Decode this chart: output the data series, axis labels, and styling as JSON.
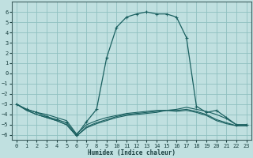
{
  "xlabel": "Humidex (Indice chaleur)",
  "background_color": "#c0e0e0",
  "grid_color": "#90c0c0",
  "line_color": "#1a6060",
  "xlim": [
    -0.5,
    23.5
  ],
  "ylim": [
    -6.5,
    7.0
  ],
  "xticks": [
    0,
    1,
    2,
    3,
    4,
    5,
    6,
    7,
    8,
    9,
    10,
    11,
    12,
    13,
    14,
    15,
    16,
    17,
    18,
    19,
    20,
    21,
    22,
    23
  ],
  "yticks": [
    -6,
    -5,
    -4,
    -3,
    -2,
    -1,
    0,
    1,
    2,
    3,
    4,
    5,
    6
  ],
  "series": [
    {
      "x": [
        0,
        1,
        2,
        3,
        4,
        5,
        6,
        7,
        8,
        9,
        10,
        11,
        12,
        13,
        14,
        15,
        16,
        17,
        18,
        19,
        20,
        21,
        22,
        23
      ],
      "y": [
        -3.0,
        -3.5,
        -3.8,
        -4.0,
        -4.3,
        -4.6,
        -5.9,
        -5.0,
        -4.6,
        -4.3,
        -4.1,
        -3.9,
        -3.8,
        -3.7,
        -3.6,
        -3.6,
        -3.5,
        -3.3,
        -3.5,
        -3.7,
        -4.0,
        -4.4,
        -5.0,
        -5.0
      ],
      "marker": false
    },
    {
      "x": [
        0,
        1,
        2,
        3,
        4,
        5,
        6,
        7,
        8,
        9,
        10,
        11,
        12,
        13,
        14,
        15,
        16,
        17,
        18,
        19,
        20,
        21,
        22,
        23
      ],
      "y": [
        -3.0,
        -3.6,
        -4.0,
        -4.3,
        -4.6,
        -5.0,
        -6.1,
        -5.2,
        -4.8,
        -4.5,
        -4.2,
        -4.0,
        -3.9,
        -3.8,
        -3.7,
        -3.6,
        -3.6,
        -3.5,
        -3.7,
        -4.0,
        -4.5,
        -4.8,
        -5.1,
        -5.1
      ],
      "marker": false
    },
    {
      "x": [
        0,
        1,
        2,
        3,
        4,
        5,
        6,
        7,
        8,
        9,
        10,
        11,
        12,
        13,
        14,
        15,
        16,
        17,
        18,
        19,
        20,
        21,
        22,
        23
      ],
      "y": [
        -3.0,
        -3.6,
        -4.0,
        -4.3,
        -4.6,
        -5.0,
        -6.1,
        -5.3,
        -4.9,
        -4.6,
        -4.3,
        -4.1,
        -4.0,
        -3.9,
        -3.8,
        -3.6,
        -3.7,
        -3.6,
        -3.8,
        -4.1,
        -4.6,
        -4.9,
        -5.1,
        -5.1
      ],
      "marker": false
    },
    {
      "x": [
        0,
        1,
        2,
        3,
        4,
        5,
        6,
        7,
        8,
        9,
        10,
        11,
        12,
        13,
        14,
        15,
        16,
        17,
        18,
        19,
        20,
        21,
        22,
        23
      ],
      "y": [
        -3.0,
        -3.5,
        -3.8,
        -4.2,
        -4.5,
        -4.8,
        -6.0,
        -4.7,
        -3.5,
        1.5,
        4.5,
        5.5,
        5.8,
        6.0,
        5.8,
        5.8,
        5.5,
        3.5,
        -3.2,
        -3.8,
        -3.6,
        -4.3,
        -5.0,
        -5.0
      ],
      "marker": true
    }
  ]
}
